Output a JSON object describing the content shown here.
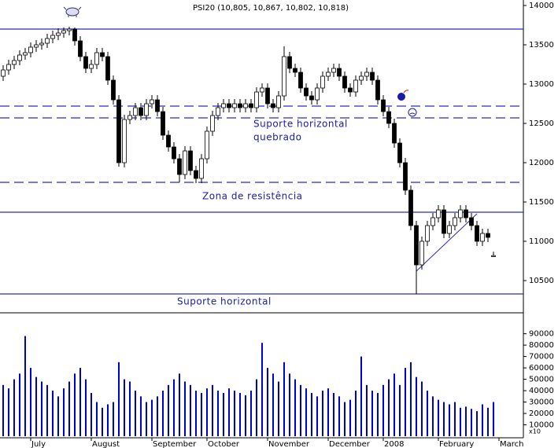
{
  "chart_data": {
    "type": "candlestick",
    "title": "PSI20 (10,805, 10,867, 10,802, 10,818)",
    "categories": [
      null,
      null,
      null,
      null,
      null,
      "July",
      null,
      null,
      null,
      null,
      null,
      null,
      null,
      null,
      null,
      null,
      "August",
      null,
      null,
      null,
      null,
      null,
      null,
      null,
      null,
      null,
      null,
      "September",
      null,
      null,
      null,
      null,
      null,
      null,
      null,
      null,
      null,
      "October",
      null,
      null,
      null,
      null,
      null,
      null,
      null,
      null,
      null,
      null,
      "November",
      null,
      null,
      null,
      null,
      null,
      null,
      null,
      null,
      null,
      null,
      "December",
      null,
      null,
      null,
      null,
      null,
      null,
      null,
      null,
      null,
      "2008",
      null,
      null,
      null,
      null,
      null,
      null,
      null,
      null,
      null,
      "February",
      null,
      null,
      null,
      null,
      null,
      null,
      null,
      null,
      null,
      null,
      "March"
    ],
    "open": [
      13100,
      13180,
      13250,
      13300,
      13370,
      13400,
      13470,
      13500,
      13520,
      13580,
      13620,
      13650,
      13680,
      13700,
      13550,
      13350,
      13200,
      13250,
      13400,
      13350,
      13050,
      12800,
      12000,
      12550,
      12600,
      12700,
      12600,
      12750,
      12800,
      12650,
      12350,
      12200,
      12050,
      11850,
      12150,
      11900,
      11800,
      12050,
      12400,
      12600,
      12700,
      12750,
      12700,
      12750,
      12700,
      12750,
      12700,
      12900,
      12950,
      12750,
      12700,
      12850,
      13350,
      13200,
      13150,
      12950,
      12850,
      12800,
      12950,
      13100,
      13150,
      13200,
      13100,
      12950,
      12900,
      13050,
      13100,
      13150,
      13050,
      12800,
      12650,
      12500,
      12250,
      12000,
      11650,
      11200,
      10700,
      11000,
      11200,
      11300,
      11400,
      11100,
      11200,
      11300,
      11400,
      11300,
      11200,
      11000,
      11100,
      10805,
      null
    ],
    "high": [
      13240,
      13310,
      13360,
      13430,
      13460,
      13530,
      13560,
      13580,
      13640,
      13680,
      13710,
      13720,
      13730,
      13720,
      13610,
      13410,
      13310,
      13460,
      13460,
      13410,
      13110,
      12860,
      12610,
      12660,
      12760,
      12760,
      12810,
      12860,
      12860,
      12710,
      12410,
      12260,
      12110,
      12210,
      12210,
      11960,
      12110,
      12460,
      12660,
      12760,
      12810,
      12810,
      12810,
      12810,
      12810,
      12810,
      12960,
      13010,
      13010,
      12810,
      12910,
      13480,
      13410,
      13260,
      13210,
      13010,
      12910,
      13010,
      13160,
      13210,
      13260,
      13260,
      13160,
      13010,
      13110,
      13160,
      13210,
      13210,
      13110,
      12860,
      12710,
      12560,
      12310,
      12060,
      11710,
      11260,
      11060,
      11260,
      11360,
      11460,
      11460,
      11260,
      11360,
      11460,
      11460,
      11360,
      11260,
      11160,
      11160,
      10867,
      null
    ],
    "low": [
      13040,
      13120,
      13190,
      13240,
      13310,
      13340,
      13410,
      13440,
      13460,
      13520,
      13560,
      13590,
      13620,
      13490,
      13290,
      13140,
      13140,
      13190,
      13290,
      12990,
      12740,
      11950,
      11940,
      12490,
      12540,
      12540,
      12540,
      12690,
      12590,
      12290,
      12140,
      11990,
      11750,
      11790,
      11840,
      11740,
      11740,
      11990,
      12340,
      12540,
      12640,
      12640,
      12640,
      12640,
      12640,
      12640,
      12640,
      12840,
      12690,
      12640,
      12640,
      12790,
      13140,
      13090,
      12890,
      12790,
      12740,
      12740,
      12890,
      13040,
      13090,
      13040,
      12890,
      12840,
      12840,
      12990,
      13040,
      12990,
      12740,
      12590,
      12440,
      12190,
      11940,
      11590,
      11140,
      10330,
      10640,
      10940,
      11140,
      11240,
      11040,
      11040,
      11140,
      11240,
      11240,
      11140,
      10940,
      10940,
      10990,
      10802,
      null
    ],
    "close": [
      13180,
      13250,
      13300,
      13370,
      13400,
      13470,
      13500,
      13520,
      13580,
      13620,
      13650,
      13680,
      13700,
      13550,
      13350,
      13200,
      13250,
      13400,
      13350,
      13050,
      12800,
      12000,
      12550,
      12600,
      12700,
      12600,
      12750,
      12800,
      12650,
      12350,
      12200,
      12050,
      11850,
      12150,
      11900,
      11800,
      12050,
      12400,
      12600,
      12700,
      12750,
      12700,
      12750,
      12700,
      12750,
      12700,
      12900,
      12950,
      12750,
      12700,
      12850,
      13350,
      13200,
      13150,
      12950,
      12850,
      12800,
      12950,
      13100,
      13150,
      13200,
      13100,
      12950,
      12900,
      13050,
      13100,
      13150,
      13050,
      12800,
      12650,
      12500,
      12250,
      12000,
      11650,
      11200,
      10700,
      11000,
      11200,
      11300,
      11400,
      11100,
      11200,
      11300,
      11400,
      11300,
      11200,
      11000,
      11100,
      11050,
      10818,
      null
    ],
    "volume": [
      45000,
      42000,
      50000,
      55000,
      88000,
      60000,
      52000,
      48000,
      45000,
      40000,
      35000,
      42000,
      48000,
      55000,
      60000,
      50000,
      38000,
      30000,
      25000,
      28000,
      30000,
      65000,
      50000,
      48000,
      40000,
      35000,
      30000,
      32000,
      35000,
      40000,
      45000,
      50000,
      55000,
      48000,
      45000,
      40000,
      38000,
      42000,
      45000,
      40000,
      38000,
      42000,
      40000,
      38000,
      36000,
      40000,
      50000,
      82000,
      60000,
      55000,
      48000,
      65000,
      55000,
      50000,
      45000,
      42000,
      38000,
      35000,
      40000,
      42000,
      38000,
      35000,
      30000,
      32000,
      40000,
      70000,
      45000,
      40000,
      38000,
      45000,
      50000,
      55000,
      45000,
      60000,
      65000,
      52000,
      48000,
      40000,
      35000,
      32000,
      30000,
      28000,
      30000,
      25000,
      26000,
      24000,
      22000,
      28000,
      25000,
      30000,
      null
    ],
    "ylim": [
      10090,
      14070
    ],
    "yticks": [
      10500,
      11000,
      11500,
      12000,
      12500,
      13000,
      13500,
      14000
    ],
    "volume_ylim": [
      0,
      107000
    ],
    "volume_yticks": [
      10000,
      20000,
      30000,
      40000,
      50000,
      60000,
      70000,
      80000,
      90000
    ],
    "volume_unit_label": "x10",
    "levels": [
      {
        "value": 13700,
        "style": "solid"
      },
      {
        "value": 12720,
        "style": "dashed"
      },
      {
        "value": 12570,
        "style": "dashed"
      },
      {
        "value": 11750,
        "style": "dashed"
      },
      {
        "value": 11370,
        "style": "solid"
      },
      {
        "value": 10330,
        "style": "solid"
      }
    ],
    "trendline": {
      "x": [
        75,
        86
      ],
      "values": [
        10620,
        11350
      ]
    },
    "annotations": [
      "Suporte horizontal",
      "quebrado",
      "Zona de resistência",
      "Suporte horizontal"
    ],
    "candle_color": "#000000",
    "volume_color": "#0000cc",
    "line_color": "#2b2bbf",
    "annotation_color": "#1a1aa6"
  }
}
